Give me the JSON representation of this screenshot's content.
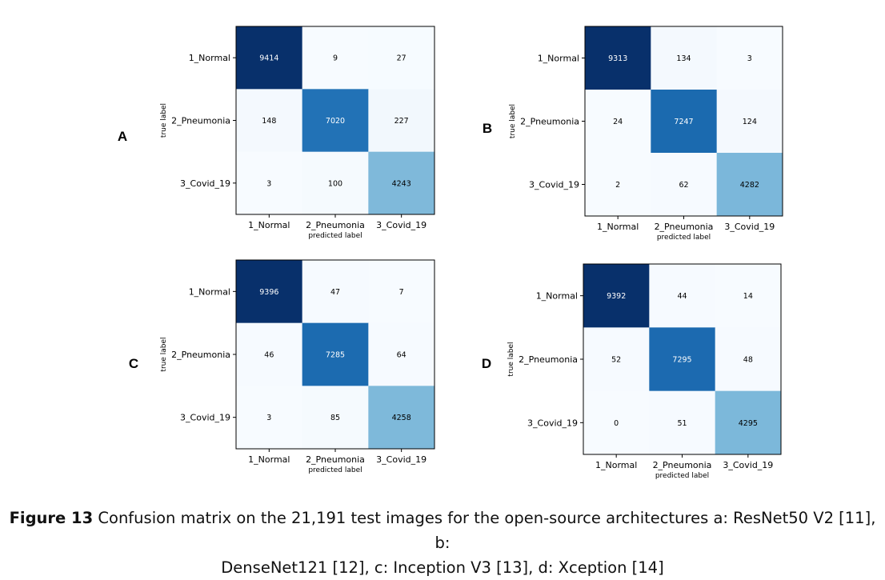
{
  "figure": {
    "caption_label": "Figure 13",
    "caption_line1": "Confusion matrix on the 21,191 test images for the open-source architectures a: ResNet50 V2 [11], b:",
    "caption_line2": "DenseNet121 [12], c: Inception V3 [13], d: Xception [14]"
  },
  "chart_data": [
    {
      "type": "heatmap",
      "panel_label": "A",
      "xlabel": "predicted label",
      "ylabel": "true label",
      "x_categories": [
        "1_Normal",
        "2_Pneumonia",
        "3_Covid_19"
      ],
      "y_categories": [
        "1_Normal",
        "2_Pneumonia",
        "3_Covid_19"
      ],
      "values": [
        [
          9414,
          9,
          27
        ],
        [
          148,
          7020,
          227
        ],
        [
          3,
          100,
          4243
        ]
      ],
      "colormap": "Blues"
    },
    {
      "type": "heatmap",
      "panel_label": "B",
      "xlabel": "predicted label",
      "ylabel": "true label",
      "x_categories": [
        "1_Normal",
        "2_Pneumonia",
        "3_Covid_19"
      ],
      "y_categories": [
        "1_Normal",
        "2_Pneumonia",
        "3_Covid_19"
      ],
      "values": [
        [
          9313,
          134,
          3
        ],
        [
          24,
          7247,
          124
        ],
        [
          2,
          62,
          4282
        ]
      ],
      "colormap": "Blues"
    },
    {
      "type": "heatmap",
      "panel_label": "C",
      "xlabel": "predicted label",
      "ylabel": "true label",
      "x_categories": [
        "1_Normal",
        "2_Pneumonia",
        "3_Covid_19"
      ],
      "y_categories": [
        "1_Normal",
        "2_Pneumonia",
        "3_Covid_19"
      ],
      "values": [
        [
          9396,
          47,
          7
        ],
        [
          46,
          7285,
          64
        ],
        [
          3,
          85,
          4258
        ]
      ],
      "colormap": "Blues"
    },
    {
      "type": "heatmap",
      "panel_label": "D",
      "xlabel": "predicted label",
      "ylabel": "true label",
      "x_categories": [
        "1_Normal",
        "2_Pneumonia",
        "3_Covid_19"
      ],
      "y_categories": [
        "1_Normal",
        "2_Pneumonia",
        "3_Covid_19"
      ],
      "values": [
        [
          9392,
          44,
          14
        ],
        [
          52,
          7295,
          48
        ],
        [
          0,
          51,
          4295
        ]
      ],
      "colormap": "Blues"
    }
  ]
}
